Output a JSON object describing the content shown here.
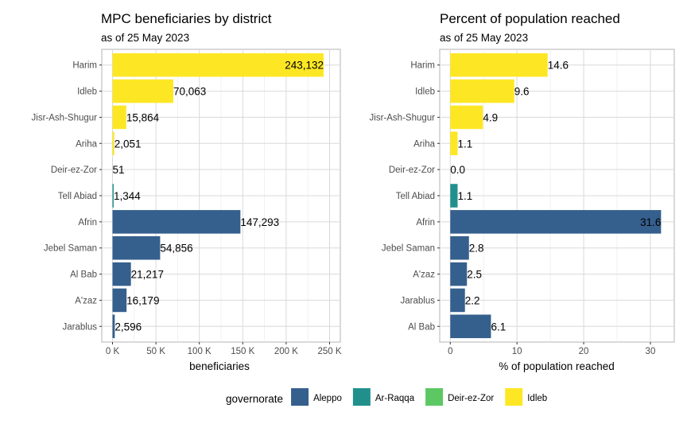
{
  "chart_data": [
    {
      "type": "bar",
      "orientation": "horizontal",
      "title": "MPC beneficiaries by district",
      "subtitle": "as of 25 May 2023",
      "xlabel": "beneficiaries",
      "xlim": [
        0,
        250000
      ],
      "xticks": [
        0,
        50000,
        100000,
        150000,
        200000,
        250000
      ],
      "xtick_labels": [
        "0 K",
        "50 K",
        "100 K",
        "150 K",
        "200 K",
        "250 K"
      ],
      "categories": [
        "Harim",
        "Idleb",
        "Jisr-Ash-Shugur",
        "Ariha",
        "Deir-ez-Zor",
        "Tell Abiad",
        "Afrin",
        "Jebel Saman",
        "Al Bab",
        "A'zaz",
        "Jarablus"
      ],
      "values": [
        243132,
        70063,
        15864,
        2051,
        51,
        1344,
        147293,
        54856,
        21217,
        16179,
        2596
      ],
      "value_labels": [
        "243,132",
        "70,063",
        "15,864",
        "2,051",
        "51",
        "1,344",
        "147,293",
        "54,856",
        "21,217",
        "16,179",
        "2,596"
      ],
      "governorates": [
        "Idleb",
        "Idleb",
        "Idleb",
        "Idleb",
        "Deir-ez-Zor",
        "Ar-Raqqa",
        "Aleppo",
        "Aleppo",
        "Aleppo",
        "Aleppo",
        "Aleppo"
      ],
      "grid": true
    },
    {
      "type": "bar",
      "orientation": "horizontal",
      "title": "Percent of population reached",
      "subtitle": "as of 25 May 2023",
      "xlabel": "% of population reached",
      "xlim": [
        0,
        32
      ],
      "xticks": [
        0,
        10,
        20,
        30
      ],
      "xtick_labels": [
        "0",
        "10",
        "20",
        "30"
      ],
      "categories": [
        "Harim",
        "Idleb",
        "Jisr-Ash-Shugur",
        "Ariha",
        "Deir-ez-Zor",
        "Tell Abiad",
        "Afrin",
        "Jebel Saman",
        "A'zaz",
        "Jarablus",
        "Al Bab"
      ],
      "values": [
        14.6,
        9.6,
        4.9,
        1.1,
        0.0,
        1.1,
        31.6,
        2.8,
        2.5,
        2.2,
        6.1
      ],
      "value_labels": [
        "14.6",
        "9.6",
        "4.9",
        "1.1",
        "0.0",
        "1.1",
        "31.6",
        "2.8",
        "2.5",
        "2.2",
        "6.1"
      ],
      "governorates": [
        "Idleb",
        "Idleb",
        "Idleb",
        "Idleb",
        "Deir-ez-Zor",
        "Ar-Raqqa",
        "Aleppo",
        "Aleppo",
        "Aleppo",
        "Aleppo",
        "Aleppo"
      ],
      "grid": true
    }
  ],
  "legend": {
    "title": "governorate",
    "position": "bottom",
    "entries": [
      {
        "name": "Aleppo",
        "color": "#355f8d"
      },
      {
        "name": "Ar-Raqqa",
        "color": "#21908d"
      },
      {
        "name": "Deir-ez-Zor",
        "color": "#5dc863"
      },
      {
        "name": "Idleb",
        "color": "#fde725"
      }
    ]
  }
}
